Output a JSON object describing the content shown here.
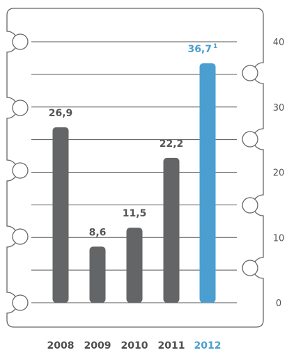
{
  "chart_data": {
    "type": "bar",
    "categories": [
      "2008",
      "2009",
      "2010",
      "2011",
      "2012"
    ],
    "values": [
      26.9,
      8.6,
      11.5,
      22.2,
      36.7
    ],
    "value_labels": [
      "26,9",
      "8,6",
      "11,5",
      "22,2",
      "36,7"
    ],
    "highlight_footnote": "1",
    "highlight_index": 4,
    "y_ticks": [
      {
        "value": 0,
        "label": "0"
      },
      {
        "value": 10,
        "label": "10"
      },
      {
        "value": 20,
        "label": "20"
      },
      {
        "value": 30,
        "label": "30"
      },
      {
        "value": 40,
        "label": "40"
      }
    ],
    "ylim": [
      0,
      40
    ],
    "grid": true,
    "colors": {
      "bar": "#646567",
      "highlight": "#4a9fd0",
      "grid": "#555555",
      "frame": "#666666",
      "label": "#555555"
    }
  }
}
